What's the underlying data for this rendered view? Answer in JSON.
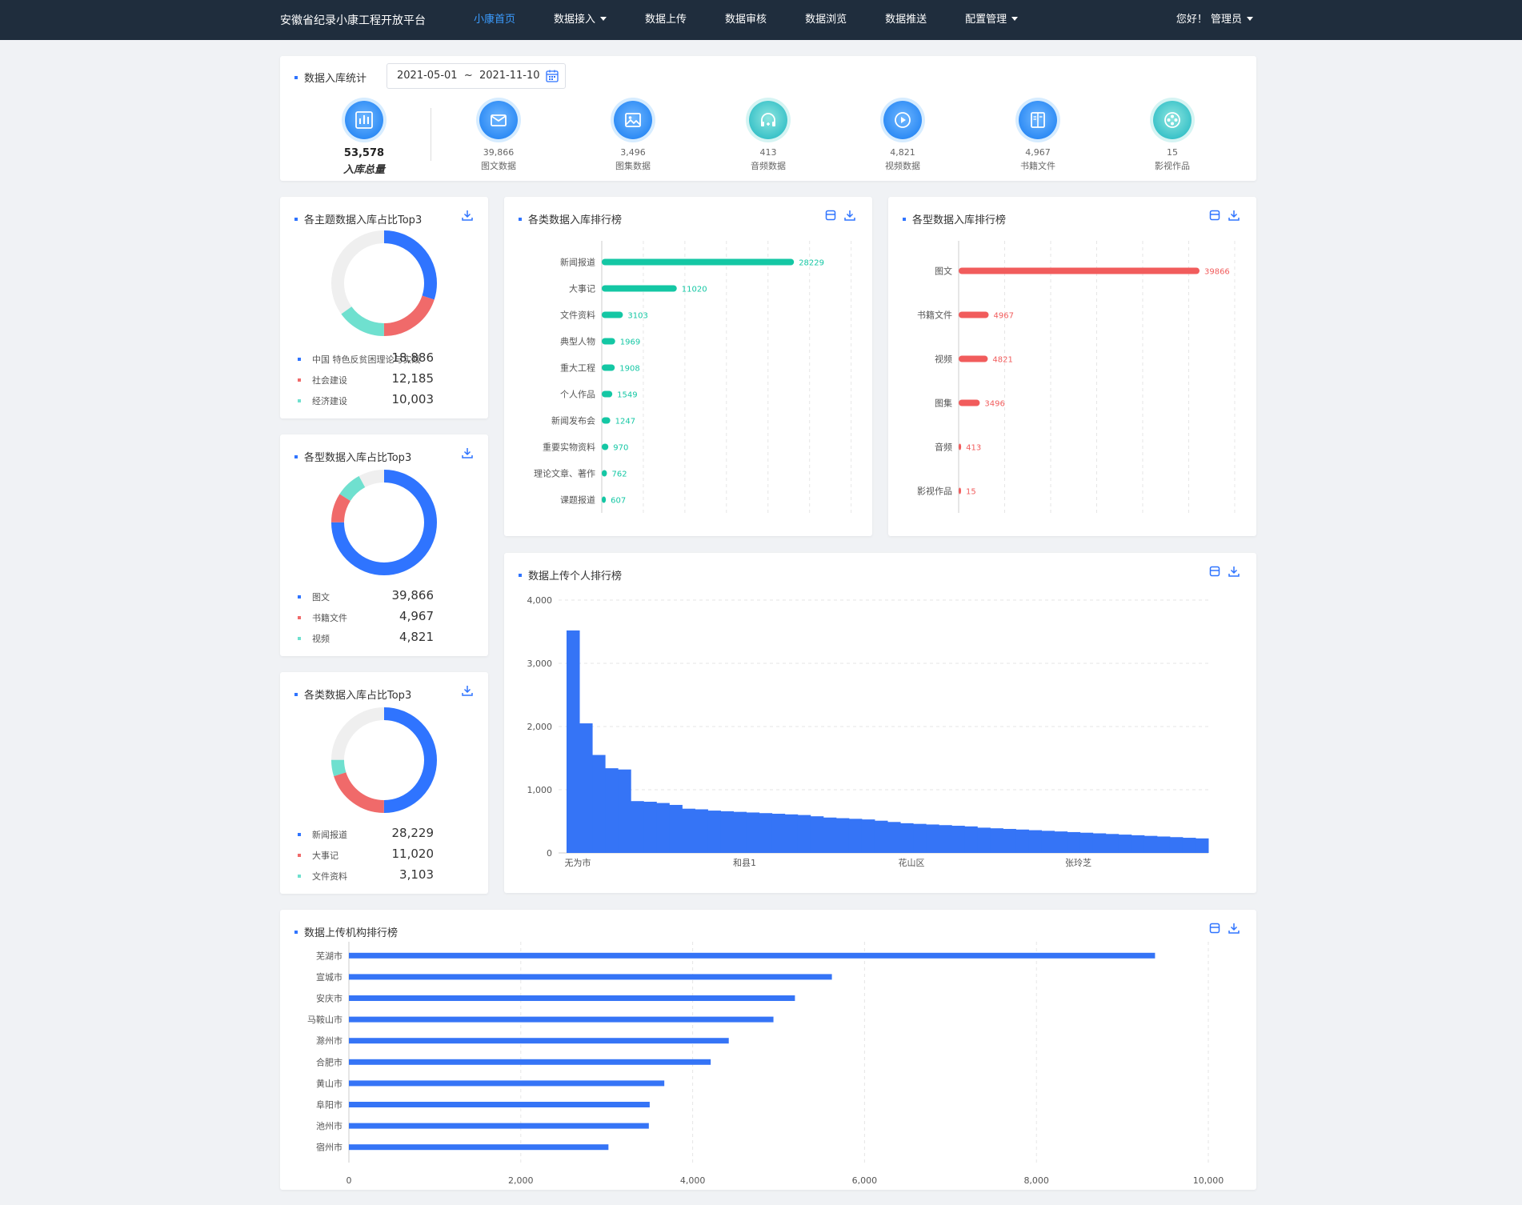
{
  "nav": {
    "brand": "安徽省纪录小康工程开放平台",
    "items": [
      {
        "label": "小康首页",
        "active": true,
        "dropdown": false
      },
      {
        "label": "数据接入",
        "active": false,
        "dropdown": true
      },
      {
        "label": "数据上传",
        "active": false,
        "dropdown": false
      },
      {
        "label": "数据审核",
        "active": false,
        "dropdown": false
      },
      {
        "label": "数据浏览",
        "active": false,
        "dropdown": false
      },
      {
        "label": "数据推送",
        "active": false,
        "dropdown": false
      },
      {
        "label": "配置管理",
        "active": false,
        "dropdown": true
      }
    ],
    "user": "您好！ 管理员"
  },
  "stats": {
    "title": "数据入库统计",
    "date_range": "2021-05-01  ~  2021-11-10",
    "total": {
      "value": "53,578",
      "label": "入库总量",
      "icon": "bar-chart-icon"
    },
    "items": [
      {
        "value": "39,866",
        "label": "图文数据",
        "icon": "mail-icon"
      },
      {
        "value": "3,496",
        "label": "图集数据",
        "icon": "image-icon"
      },
      {
        "value": "413",
        "label": "音频数据",
        "icon": "headphones-icon"
      },
      {
        "value": "4,821",
        "label": "视频数据",
        "icon": "play-icon"
      },
      {
        "value": "4,967",
        "label": "书籍文件",
        "icon": "book-icon"
      },
      {
        "value": "15",
        "label": "影视作品",
        "icon": "film-reel-icon"
      }
    ]
  },
  "colors": {
    "blue": "#2f74ff",
    "red": "#f06a6a",
    "teal": "#6fe0cf",
    "grey": "#efefef",
    "green": "#14c7a4",
    "coral": "#f15c5c",
    "bar": "#3574f6"
  },
  "donuts": [
    {
      "title": "各主题数据入库占比Top3",
      "items": [
        {
          "label": "中国 特色反贫困理论与实践",
          "value": 18886,
          "display": "18,886",
          "color": "#2f74ff"
        },
        {
          "label": "社会建设",
          "value": 12185,
          "display": "12,185",
          "color": "#f06a6a"
        },
        {
          "label": "经济建设",
          "value": 10003,
          "display": "10,003",
          "color": "#6fe0cf"
        }
      ],
      "fractions": [
        0.3,
        0.2,
        0.15
      ]
    },
    {
      "title": "各型数据入库占比Top3",
      "items": [
        {
          "label": "图文",
          "value": 39866,
          "display": "39,866",
          "color": "#2f74ff"
        },
        {
          "label": "书籍文件",
          "value": 4967,
          "display": "4,967",
          "color": "#f06a6a"
        },
        {
          "label": "视频",
          "value": 4821,
          "display": "4,821",
          "color": "#6fe0cf"
        }
      ],
      "fractions": [
        0.75,
        0.09,
        0.08
      ]
    },
    {
      "title": "各类数据入库占比Top3",
      "items": [
        {
          "label": "新闻报道",
          "value": 28229,
          "display": "28,229",
          "color": "#2f74ff"
        },
        {
          "label": "大事记",
          "value": 11020,
          "display": "11,020",
          "color": "#f06a6a"
        },
        {
          "label": "文件资料",
          "value": 3103,
          "display": "3,103",
          "color": "#6fe0cf"
        }
      ],
      "fractions": [
        0.5,
        0.2,
        0.05
      ]
    }
  ],
  "chart_data": [
    {
      "type": "bar",
      "orientation": "horizontal",
      "title": "各类数据入库排行榜",
      "categories": [
        "新闻报道",
        "大事记",
        "文件资料",
        "典型人物",
        "重大工程",
        "个人作品",
        "新闻发布会",
        "重要实物资料",
        "理论文章、著作",
        "课题报道"
      ],
      "values": [
        28229,
        11020,
        3103,
        1969,
        1908,
        1549,
        1247,
        970,
        762,
        607
      ],
      "xlim": [
        0,
        40000
      ],
      "color": "#14c7a4",
      "grid": true
    },
    {
      "type": "bar",
      "orientation": "horizontal",
      "title": "各型数据入库排行榜",
      "categories": [
        "图文",
        "书籍文件",
        "视频",
        "图集",
        "音频",
        "影视作品"
      ],
      "values": [
        39866,
        4967,
        4821,
        3496,
        413,
        15
      ],
      "xlim": [
        0,
        40000
      ],
      "color": "#f15c5c",
      "grid": true
    },
    {
      "type": "bar",
      "orientation": "vertical",
      "title": "数据上传个人排行榜",
      "tick_labels": [
        "无为市",
        "和县1",
        "花山区",
        "张玲芝"
      ],
      "tick_positions": [
        0,
        13,
        26,
        39
      ],
      "values": [
        3520,
        2050,
        1550,
        1340,
        1320,
        820,
        810,
        790,
        760,
        700,
        690,
        670,
        660,
        650,
        640,
        630,
        620,
        610,
        600,
        580,
        560,
        550,
        540,
        530,
        510,
        490,
        470,
        460,
        450,
        440,
        430,
        420,
        400,
        390,
        380,
        370,
        360,
        350,
        340,
        330,
        320,
        310,
        300,
        290,
        280,
        270,
        260,
        250,
        240,
        230
      ],
      "ylim": [
        0,
        4000
      ],
      "yticks": [
        "0",
        "1,000",
        "2,000",
        "3,000",
        "4,000"
      ],
      "color": "#3574f6",
      "grid": true
    },
    {
      "type": "bar",
      "orientation": "horizontal",
      "title": "数据上传机构排行榜",
      "categories": [
        "芜湖市",
        "宣城市",
        "安庆市",
        "马鞍山市",
        "滁州市",
        "合肥市",
        "黄山市",
        "阜阳市",
        "池州市",
        "宿州市"
      ],
      "values": [
        9380,
        5620,
        5190,
        4940,
        4420,
        4210,
        3670,
        3500,
        3490,
        3020
      ],
      "xlim": [
        0,
        10000
      ],
      "xticks": [
        "0",
        "2,000",
        "4,000",
        "6,000",
        "8,000",
        "10,000"
      ],
      "color": "#3574f6",
      "grid": true
    }
  ]
}
